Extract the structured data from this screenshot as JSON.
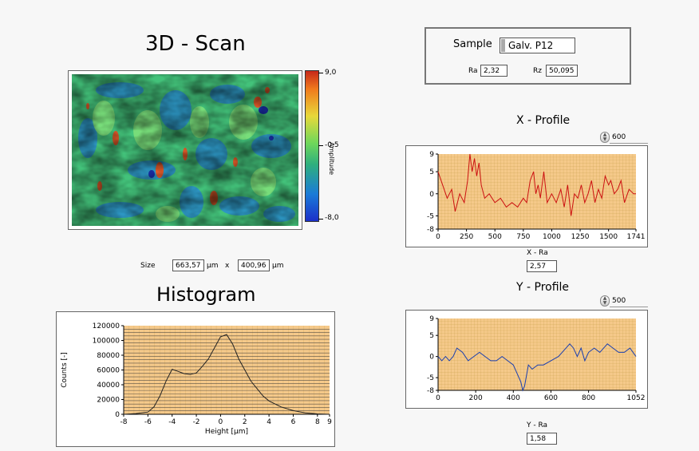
{
  "scan": {
    "title": "3D - Scan",
    "colorbar_labels": [
      "9,0",
      "-0,5",
      "-8,0"
    ],
    "colorbar_axis": "Amplitude",
    "size_label": "Size",
    "size_x": "663,57",
    "size_y": "400,96",
    "unit_x": "µm",
    "times": "x",
    "unit_y": "µm"
  },
  "sample": {
    "label": "Sample",
    "value": "Galv. P12",
    "ra_label": "Ra",
    "ra_value": "2,32",
    "rz_label": "Rz",
    "rz_value": "50,095"
  },
  "x_profile": {
    "title": "X - Profile",
    "slider_value": "600",
    "ra_label": "X - Ra",
    "ra_value": "2,57"
  },
  "y_profile": {
    "title": "Y - Profile",
    "slider_value": "500",
    "ra_label": "Y - Ra",
    "ra_value": "1,58"
  },
  "histogram": {
    "title": "Histogram"
  },
  "colors": {
    "plot_bg": "#f5c98a",
    "x_line": "#cc1111",
    "y_line": "#1a3fb0",
    "hist_line": "#222222",
    "grid": "#b08a2a"
  },
  "chart_data": [
    {
      "type": "line",
      "name": "x-profile",
      "xlim": [
        0,
        1741
      ],
      "ylim": [
        -8,
        9
      ],
      "x_ticks": [
        "0",
        "250",
        "500",
        "750",
        "1000",
        "1250",
        "1500",
        "1741"
      ],
      "y_ticks": [
        "9",
        "5",
        "0",
        "-5",
        "-8"
      ],
      "series": [
        {
          "x": [
            0,
            40,
            80,
            120,
            150,
            190,
            230,
            260,
            280,
            300,
            320,
            340,
            360,
            380,
            410,
            450,
            500,
            550,
            600,
            650,
            700,
            750,
            780,
            810,
            840,
            860,
            880,
            900,
            930,
            960,
            1000,
            1040,
            1080,
            1110,
            1140,
            1170,
            1200,
            1230,
            1260,
            1290,
            1320,
            1350,
            1380,
            1410,
            1440,
            1470,
            1500,
            1520,
            1550,
            1580,
            1610,
            1640,
            1680,
            1720,
            1741
          ],
          "values": [
            5,
            2,
            -1,
            1,
            -4,
            0,
            -2,
            3,
            9,
            5,
            8,
            4,
            7,
            2,
            -1,
            0,
            -2,
            -1,
            -3,
            -2,
            -3,
            -1,
            -2,
            3,
            5,
            0,
            2,
            -1,
            5,
            -2,
            0,
            -2,
            1,
            -3,
            2,
            -5,
            0,
            -1,
            2,
            -2,
            0,
            3,
            -2,
            1,
            -1,
            4,
            2,
            3,
            0,
            1,
            3,
            -2,
            1,
            0,
            0
          ]
        }
      ]
    },
    {
      "type": "line",
      "name": "y-profile",
      "xlim": [
        0,
        1052
      ],
      "ylim": [
        -8,
        9
      ],
      "x_ticks": [
        "0",
        "200",
        "400",
        "600",
        "800",
        "1052"
      ],
      "y_ticks": [
        "9",
        "5",
        "0",
        "-5",
        "-8"
      ],
      "series": [
        {
          "x": [
            0,
            20,
            40,
            60,
            80,
            100,
            130,
            160,
            190,
            220,
            250,
            280,
            310,
            340,
            370,
            400,
            420,
            440,
            450,
            460,
            480,
            500,
            530,
            560,
            600,
            640,
            680,
            700,
            720,
            740,
            760,
            780,
            800,
            830,
            860,
            880,
            900,
            930,
            960,
            990,
            1020,
            1052
          ],
          "values": [
            0,
            -1,
            0,
            -1,
            0,
            2,
            1,
            -1,
            0,
            1,
            0,
            -1,
            -1,
            0,
            -1,
            -2,
            -4,
            -6,
            -8,
            -7,
            -2,
            -3,
            -2,
            -2,
            -1,
            0,
            2,
            3,
            2,
            0,
            2,
            -1,
            1,
            2,
            1,
            2,
            3,
            2,
            1,
            1,
            2,
            0
          ]
        }
      ]
    },
    {
      "type": "line",
      "name": "histogram",
      "xlabel": "Height [µm]",
      "ylabel": "Counts [-]",
      "xlim": [
        -8,
        9
      ],
      "ylim": [
        0,
        120000
      ],
      "x_ticks": [
        "-8",
        "-6",
        "-4",
        "-2",
        "0",
        "2",
        "4",
        "6",
        "8",
        "9"
      ],
      "y_ticks": [
        "120000",
        "100000",
        "80000",
        "60000",
        "40000",
        "20000",
        "0"
      ],
      "series": [
        {
          "x": [
            -8,
            -7,
            -6,
            -5.5,
            -5,
            -4.5,
            -4,
            -3.5,
            -3,
            -2.5,
            -2,
            -1.5,
            -1,
            -0.5,
            0,
            0.5,
            1,
            1.5,
            2,
            2.5,
            3,
            3.5,
            4,
            5,
            6,
            7,
            8,
            9
          ],
          "values": [
            0,
            1000,
            3000,
            10000,
            25000,
            45000,
            61000,
            58000,
            55000,
            54000,
            56000,
            65000,
            75000,
            90000,
            105000,
            108000,
            95000,
            75000,
            60000,
            45000,
            35000,
            25000,
            18000,
            10000,
            5000,
            2000,
            500,
            0
          ]
        }
      ]
    }
  ]
}
